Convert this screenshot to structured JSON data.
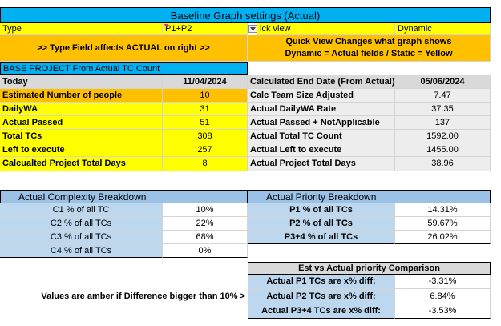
{
  "header": {
    "title": "Baseline Graph settings (Actual)",
    "type_label": "Type",
    "type_value": "P1+P2",
    "quick_view_label": "ick view",
    "quick_view_value": "Dynamic",
    "type_note": ">> Type Field affects ACTUAL on right >>",
    "quick_note_1": "Quick View Changes what graph shows",
    "quick_note_2": "Dynamic = Actual fields / Static = Yellow"
  },
  "base": {
    "title": "BASE PROJECT From Actual TC Count",
    "rows": [
      {
        "label": "Today",
        "value": "11/04/2024",
        "rlabel": "Calculated End Date (From Actual)",
        "rvalue": "05/06/2024"
      },
      {
        "label": "Estimated Number of people",
        "value": "10",
        "rlabel": "Calc Team Size Adjusted",
        "rvalue": "7.47"
      },
      {
        "label": "DailyWA",
        "value": "31",
        "rlabel": "Actual DailyWA Rate",
        "rvalue": "37.35"
      },
      {
        "label": "Actual Passed",
        "value": "51",
        "rlabel": "Actual Passed + NotApplicable",
        "rvalue": "137"
      },
      {
        "label": "Total TCs",
        "value": "308",
        "rlabel": "Actual Total TC Count",
        "rvalue": "1592.00"
      },
      {
        "label": "Left to execute",
        "value": "257",
        "rlabel": "Actual Left to execute",
        "rvalue": "1455.00"
      },
      {
        "label": "Calcualted Project Total Days",
        "value": "8",
        "rlabel": "Actual Project Total Days",
        "rvalue": "38.96"
      }
    ]
  },
  "complexity": {
    "title": "Actual Complexity Breakdown",
    "rows": [
      {
        "label": "C1 % of all TC",
        "value": "10%"
      },
      {
        "label": "C2 % of all TCs",
        "value": "22%"
      },
      {
        "label": "C3  % of all TCs",
        "value": "68%"
      },
      {
        "label": "C4  % of all TCs",
        "value": "0%"
      }
    ]
  },
  "priority": {
    "title": "Actual Priority Breakdown",
    "rows": [
      {
        "label": "P1 % of all TCs",
        "value": "14.31%"
      },
      {
        "label": "P2 % of all TCs",
        "value": "59.67%"
      },
      {
        "label": "P3+4 % of all TCs",
        "value": "26.02%"
      }
    ]
  },
  "comparison": {
    "title": "Est vs Actual priority Comparison",
    "note": "Values are amber if Difference bigger than 10% >",
    "rows": [
      {
        "label": "Actual P1 TCs are x% diff:",
        "value": "-3.31%"
      },
      {
        "label": "Actual P2 TCs are x% diff:",
        "value": "6.84%"
      },
      {
        "label": "Actual P3+4 TCs are x% diff:",
        "value": "-3.53%"
      }
    ]
  },
  "colors": {
    "title_blue": "#00b0f0",
    "yellow": "#ffff00",
    "amber": "#ffc000",
    "light_blue": "#bdd7ee",
    "grey": "#d9d9d9",
    "section_blue": "#9bc2e6"
  }
}
